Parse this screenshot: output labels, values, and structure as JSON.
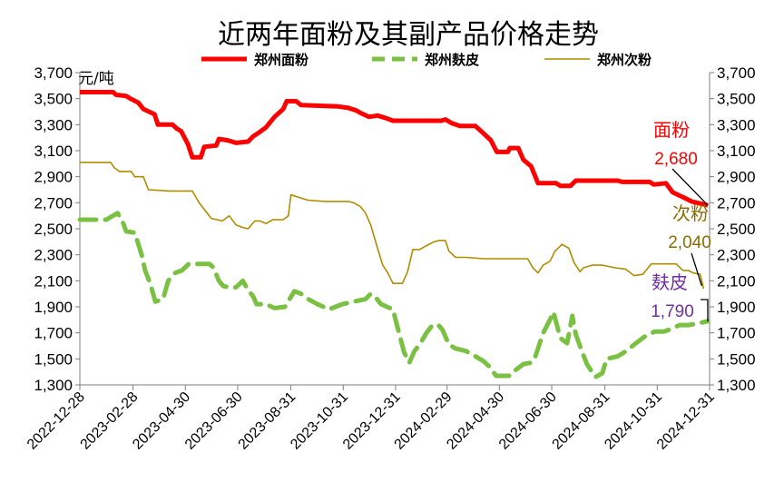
{
  "chart_data": {
    "type": "line",
    "title": "近两年面粉及其副产品价格走势",
    "unit_label": "元/吨",
    "y_ticks": [
      "3,700",
      "3,500",
      "3,300",
      "3,100",
      "2,900",
      "2,700",
      "2,500",
      "2,300",
      "2,100",
      "1,900",
      "1,700",
      "1,500",
      "1,300"
    ],
    "ylim": [
      1300,
      3700
    ],
    "x_ticks": [
      "2022-12-28",
      "2023-02-28",
      "2023-04-30",
      "2023-06-30",
      "2023-08-31",
      "2023-10-31",
      "2023-12-31",
      "2024-02-29",
      "2024-04-30",
      "2024-06-30",
      "2024-08-31",
      "2024-10-31",
      "2024-12-31"
    ],
    "legend_position": "top",
    "grid": false,
    "series": [
      {
        "name": "郑州面粉",
        "color": "#ff0000",
        "style": "solid-thick",
        "points": [
          [
            "2022-12-28",
            3550
          ],
          [
            "2023-02-05",
            3550
          ],
          [
            "2023-02-08",
            3530
          ],
          [
            "2023-02-20",
            3520
          ],
          [
            "2023-02-25",
            3500
          ],
          [
            "2023-03-06",
            3470
          ],
          [
            "2023-03-12",
            3420
          ],
          [
            "2023-03-25",
            3380
          ],
          [
            "2023-03-29",
            3300
          ],
          [
            "2023-04-15",
            3300
          ],
          [
            "2023-04-20",
            3270
          ],
          [
            "2023-04-25",
            3250
          ],
          [
            "2023-05-03",
            3150
          ],
          [
            "2023-05-08",
            3050
          ],
          [
            "2023-05-18",
            3050
          ],
          [
            "2023-05-22",
            3130
          ],
          [
            "2023-06-05",
            3140
          ],
          [
            "2023-06-08",
            3190
          ],
          [
            "2023-06-18",
            3180
          ],
          [
            "2023-06-28",
            3160
          ],
          [
            "2023-07-12",
            3170
          ],
          [
            "2023-07-18",
            3210
          ],
          [
            "2023-07-25",
            3240
          ],
          [
            "2023-08-02",
            3280
          ],
          [
            "2023-08-12",
            3360
          ],
          [
            "2023-08-22",
            3420
          ],
          [
            "2023-08-26",
            3480
          ],
          [
            "2023-09-06",
            3480
          ],
          [
            "2023-09-12",
            3450
          ],
          [
            "2023-10-25",
            3440
          ],
          [
            "2023-11-05",
            3430
          ],
          [
            "2023-11-15",
            3410
          ],
          [
            "2023-11-20",
            3390
          ],
          [
            "2023-11-30",
            3360
          ],
          [
            "2023-12-10",
            3370
          ],
          [
            "2023-12-20",
            3350
          ],
          [
            "2023-12-28",
            3330
          ],
          [
            "2024-02-22",
            3330
          ],
          [
            "2024-02-27",
            3340
          ],
          [
            "2024-03-06",
            3310
          ],
          [
            "2024-03-15",
            3290
          ],
          [
            "2024-04-02",
            3290
          ],
          [
            "2024-04-12",
            3230
          ],
          [
            "2024-04-20",
            3180
          ],
          [
            "2024-04-27",
            3090
          ],
          [
            "2024-05-10",
            3090
          ],
          [
            "2024-05-12",
            3120
          ],
          [
            "2024-05-22",
            3120
          ],
          [
            "2024-05-28",
            3030
          ],
          [
            "2024-06-06",
            2980
          ],
          [
            "2024-06-14",
            2850
          ],
          [
            "2024-07-05",
            2850
          ],
          [
            "2024-07-10",
            2830
          ],
          [
            "2024-07-22",
            2830
          ],
          [
            "2024-07-28",
            2870
          ],
          [
            "2024-09-15",
            2870
          ],
          [
            "2024-09-20",
            2860
          ],
          [
            "2024-10-22",
            2860
          ],
          [
            "2024-10-27",
            2840
          ],
          [
            "2024-11-10",
            2850
          ],
          [
            "2024-11-18",
            2780
          ],
          [
            "2024-12-01",
            2740
          ],
          [
            "2024-12-10",
            2710
          ],
          [
            "2024-12-29",
            2680
          ]
        ],
        "end_label_name": "面粉",
        "end_label_value": "2,680"
      },
      {
        "name": "郑州麸皮",
        "color": "#7ac143",
        "style": "dashed-thick",
        "points": [
          [
            "2022-12-28",
            2570
          ],
          [
            "2023-01-28",
            2570
          ],
          [
            "2023-02-02",
            2590
          ],
          [
            "2023-02-10",
            2620
          ],
          [
            "2023-02-16",
            2550
          ],
          [
            "2023-02-20",
            2480
          ],
          [
            "2023-03-02",
            2470
          ],
          [
            "2023-03-10",
            2300
          ],
          [
            "2023-03-14",
            2180
          ],
          [
            "2023-03-20",
            2080
          ],
          [
            "2023-03-26",
            1940
          ],
          [
            "2023-04-04",
            1960
          ],
          [
            "2023-04-10",
            2100
          ],
          [
            "2023-04-18",
            2160
          ],
          [
            "2023-04-26",
            2180
          ],
          [
            "2023-05-04",
            2230
          ],
          [
            "2023-05-28",
            2230
          ],
          [
            "2023-06-02",
            2200
          ],
          [
            "2023-06-08",
            2100
          ],
          [
            "2023-06-13",
            2060
          ],
          [
            "2023-06-20",
            2050
          ],
          [
            "2023-06-28",
            2050
          ],
          [
            "2023-07-06",
            2100
          ],
          [
            "2023-07-12",
            2030
          ],
          [
            "2023-07-18",
            1980
          ],
          [
            "2023-07-22",
            1920
          ],
          [
            "2023-08-02",
            1920
          ],
          [
            "2023-08-12",
            1890
          ],
          [
            "2023-08-24",
            1900
          ],
          [
            "2023-09-04",
            2020
          ],
          [
            "2023-09-12",
            2000
          ],
          [
            "2023-09-20",
            1960
          ],
          [
            "2023-10-01",
            1920
          ],
          [
            "2023-10-08",
            1900
          ],
          [
            "2023-10-14",
            1880
          ],
          [
            "2023-10-22",
            1900
          ],
          [
            "2023-10-30",
            1920
          ],
          [
            "2023-11-12",
            1940
          ],
          [
            "2023-11-26",
            1960
          ],
          [
            "2023-12-02",
            2000
          ],
          [
            "2023-12-08",
            1970
          ],
          [
            "2023-12-14",
            1920
          ],
          [
            "2023-12-28",
            1880
          ],
          [
            "2024-01-02",
            1750
          ],
          [
            "2024-01-10",
            1550
          ],
          [
            "2024-01-16",
            1470
          ],
          [
            "2024-01-22",
            1560
          ],
          [
            "2024-01-28",
            1610
          ],
          [
            "2024-02-05",
            1700
          ],
          [
            "2024-02-12",
            1760
          ],
          [
            "2024-02-19",
            1760
          ],
          [
            "2024-02-24",
            1720
          ],
          [
            "2024-03-02",
            1610
          ],
          [
            "2024-03-10",
            1580
          ],
          [
            "2024-03-22",
            1560
          ],
          [
            "2024-04-02",
            1520
          ],
          [
            "2024-04-12",
            1480
          ],
          [
            "2024-04-20",
            1430
          ],
          [
            "2024-04-26",
            1370
          ],
          [
            "2024-05-12",
            1370
          ],
          [
            "2024-05-18",
            1410
          ],
          [
            "2024-05-28",
            1460
          ],
          [
            "2024-06-06",
            1470
          ],
          [
            "2024-06-10",
            1500
          ],
          [
            "2024-06-20",
            1700
          ],
          [
            "2024-06-28",
            1800
          ],
          [
            "2024-07-02",
            1860
          ],
          [
            "2024-07-10",
            1660
          ],
          [
            "2024-07-18",
            1620
          ],
          [
            "2024-07-24",
            1830
          ],
          [
            "2024-07-28",
            1690
          ],
          [
            "2024-08-04",
            1560
          ],
          [
            "2024-08-10",
            1460
          ],
          [
            "2024-08-20",
            1360
          ],
          [
            "2024-08-28",
            1390
          ],
          [
            "2024-09-02",
            1500
          ],
          [
            "2024-09-15",
            1520
          ],
          [
            "2024-09-25",
            1560
          ],
          [
            "2024-10-06",
            1620
          ],
          [
            "2024-10-16",
            1670
          ],
          [
            "2024-10-28",
            1710
          ],
          [
            "2024-11-08",
            1710
          ],
          [
            "2024-11-16",
            1730
          ],
          [
            "2024-11-26",
            1760
          ],
          [
            "2024-12-06",
            1760
          ],
          [
            "2024-12-16",
            1770
          ],
          [
            "2024-12-29",
            1790
          ]
        ],
        "end_label_name": "麸皮",
        "end_label_value": "1,790"
      },
      {
        "name": "郑州次粉",
        "color": "#b08c00",
        "style": "solid-thin",
        "points": [
          [
            "2022-12-28",
            3010
          ],
          [
            "2023-02-02",
            3010
          ],
          [
            "2023-02-06",
            2970
          ],
          [
            "2023-02-12",
            2940
          ],
          [
            "2023-02-26",
            2940
          ],
          [
            "2023-03-02",
            2900
          ],
          [
            "2023-03-12",
            2900
          ],
          [
            "2023-03-18",
            2800
          ],
          [
            "2023-04-12",
            2790
          ],
          [
            "2023-05-08",
            2790
          ],
          [
            "2023-05-16",
            2700
          ],
          [
            "2023-05-30",
            2580
          ],
          [
            "2023-06-12",
            2560
          ],
          [
            "2023-06-20",
            2600
          ],
          [
            "2023-06-28",
            2530
          ],
          [
            "2023-07-06",
            2510
          ],
          [
            "2023-07-12",
            2500
          ],
          [
            "2023-07-20",
            2560
          ],
          [
            "2023-07-26",
            2560
          ],
          [
            "2023-08-02",
            2540
          ],
          [
            "2023-08-10",
            2570
          ],
          [
            "2023-08-22",
            2570
          ],
          [
            "2023-08-28",
            2600
          ],
          [
            "2023-08-31",
            2760
          ],
          [
            "2023-09-10",
            2740
          ],
          [
            "2023-09-20",
            2720
          ],
          [
            "2023-10-10",
            2710
          ],
          [
            "2023-11-06",
            2710
          ],
          [
            "2023-11-12",
            2700
          ],
          [
            "2023-11-20",
            2670
          ],
          [
            "2023-11-26",
            2620
          ],
          [
            "2023-12-02",
            2530
          ],
          [
            "2023-12-10",
            2350
          ],
          [
            "2023-12-16",
            2220
          ],
          [
            "2023-12-22",
            2160
          ],
          [
            "2023-12-28",
            2080
          ],
          [
            "2024-01-08",
            2080
          ],
          [
            "2024-01-14",
            2170
          ],
          [
            "2024-01-20",
            2340
          ],
          [
            "2024-01-28",
            2340
          ],
          [
            "2024-02-05",
            2370
          ],
          [
            "2024-02-14",
            2400
          ],
          [
            "2024-02-20",
            2410
          ],
          [
            "2024-02-27",
            2410
          ],
          [
            "2024-03-02",
            2330
          ],
          [
            "2024-03-10",
            2280
          ],
          [
            "2024-03-22",
            2280
          ],
          [
            "2024-04-12",
            2270
          ],
          [
            "2024-06-02",
            2270
          ],
          [
            "2024-06-08",
            2200
          ],
          [
            "2024-06-14",
            2160
          ],
          [
            "2024-06-20",
            2220
          ],
          [
            "2024-06-28",
            2250
          ],
          [
            "2024-07-04",
            2330
          ],
          [
            "2024-07-12",
            2380
          ],
          [
            "2024-07-20",
            2350
          ],
          [
            "2024-07-26",
            2240
          ],
          [
            "2024-08-02",
            2170
          ],
          [
            "2024-08-06",
            2200
          ],
          [
            "2024-08-16",
            2220
          ],
          [
            "2024-08-28",
            2220
          ],
          [
            "2024-09-12",
            2200
          ],
          [
            "2024-09-24",
            2190
          ],
          [
            "2024-10-04",
            2140
          ],
          [
            "2024-10-14",
            2150
          ],
          [
            "2024-10-24",
            2230
          ],
          [
            "2024-11-22",
            2230
          ],
          [
            "2024-11-30",
            2180
          ],
          [
            "2024-12-06",
            2180
          ],
          [
            "2024-12-12",
            2160
          ],
          [
            "2024-12-20",
            2150
          ],
          [
            "2024-12-24",
            2040
          ]
        ],
        "end_label_name": "次粉",
        "end_label_value": "2,040"
      }
    ]
  }
}
